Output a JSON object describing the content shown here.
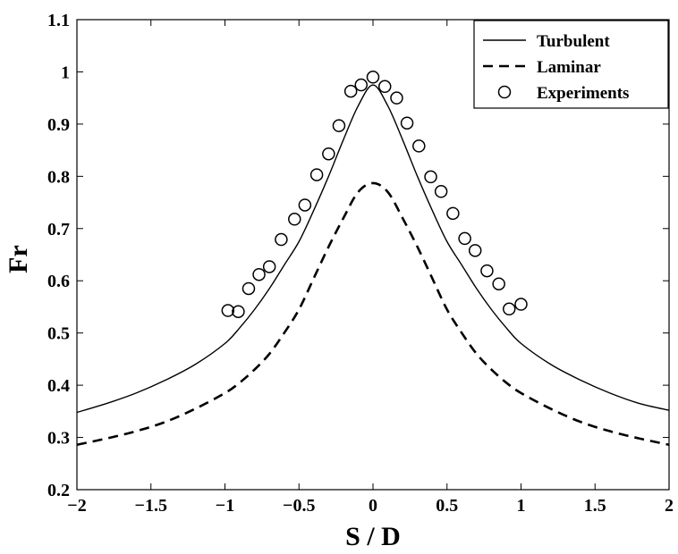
{
  "chart_data": {
    "type": "line",
    "xlabel": "S / D",
    "ylabel": "Fr",
    "xlim": [
      -2,
      2
    ],
    "ylim": [
      0.2,
      1.1
    ],
    "xticks": [
      -2,
      -1.5,
      -1,
      -0.5,
      0,
      0.5,
      1,
      1.5,
      2
    ],
    "xtick_labels": [
      "−2",
      "−1.5",
      "−1",
      "−0.5",
      "0",
      "0.5",
      "1",
      "1.5",
      "2"
    ],
    "yticks": [
      0.2,
      0.3,
      0.4,
      0.5,
      0.6,
      0.7,
      0.8,
      0.9,
      1,
      1.1
    ],
    "ytick_labels": [
      "0.2",
      "0.3",
      "0.4",
      "0.5",
      "0.6",
      "0.7",
      "0.8",
      "0.9",
      "1",
      "1.1"
    ],
    "grid": false,
    "legend_position": "top-right",
    "series": [
      {
        "name": "Turbulent",
        "style": "solid",
        "color": "#000000",
        "x": [
          -2,
          -1.8,
          -1.6,
          -1.4,
          -1.2,
          -1.0,
          -0.9,
          -0.8,
          -0.7,
          -0.6,
          -0.5,
          -0.4,
          -0.3,
          -0.2,
          -0.1,
          0,
          0.1,
          0.2,
          0.3,
          0.4,
          0.5,
          0.6,
          0.7,
          0.8,
          0.9,
          1.0,
          1.2,
          1.4,
          1.6,
          1.8,
          2
        ],
        "y": [
          0.348,
          0.365,
          0.385,
          0.41,
          0.44,
          0.48,
          0.51,
          0.545,
          0.585,
          0.63,
          0.675,
          0.735,
          0.8,
          0.87,
          0.935,
          0.975,
          0.935,
          0.87,
          0.8,
          0.735,
          0.675,
          0.63,
          0.585,
          0.545,
          0.51,
          0.48,
          0.44,
          0.41,
          0.385,
          0.365,
          0.352
        ]
      },
      {
        "name": "Laminar",
        "style": "dashed",
        "color": "#000000",
        "x": [
          -2,
          -1.8,
          -1.6,
          -1.4,
          -1.2,
          -1.0,
          -0.9,
          -0.8,
          -0.7,
          -0.6,
          -0.5,
          -0.4,
          -0.3,
          -0.2,
          -0.1,
          0,
          0.1,
          0.2,
          0.3,
          0.4,
          0.5,
          0.6,
          0.7,
          0.8,
          0.9,
          1.0,
          1.2,
          1.4,
          1.6,
          1.8,
          2
        ],
        "y": [
          0.286,
          0.298,
          0.312,
          0.33,
          0.355,
          0.385,
          0.405,
          0.43,
          0.46,
          0.5,
          0.545,
          0.605,
          0.665,
          0.72,
          0.77,
          0.787,
          0.77,
          0.72,
          0.665,
          0.605,
          0.545,
          0.5,
          0.46,
          0.43,
          0.405,
          0.385,
          0.355,
          0.33,
          0.312,
          0.298,
          0.286
        ]
      },
      {
        "name": "Experiments",
        "style": "markers",
        "color": "#000000",
        "x": [
          -0.98,
          -0.91,
          -0.84,
          -0.77,
          -0.7,
          -0.62,
          -0.53,
          -0.46,
          -0.38,
          -0.3,
          -0.23,
          -0.15,
          -0.08,
          0.0,
          0.08,
          0.16,
          0.23,
          0.31,
          0.39,
          0.46,
          0.54,
          0.62,
          0.69,
          0.77,
          0.85,
          0.92,
          1.0
        ],
        "y": [
          0.543,
          0.541,
          0.585,
          0.612,
          0.627,
          0.679,
          0.718,
          0.745,
          0.803,
          0.843,
          0.897,
          0.963,
          0.975,
          0.99,
          0.972,
          0.95,
          0.902,
          0.858,
          0.799,
          0.771,
          0.729,
          0.681,
          0.658,
          0.619,
          0.594,
          0.546,
          0.555
        ]
      }
    ]
  }
}
